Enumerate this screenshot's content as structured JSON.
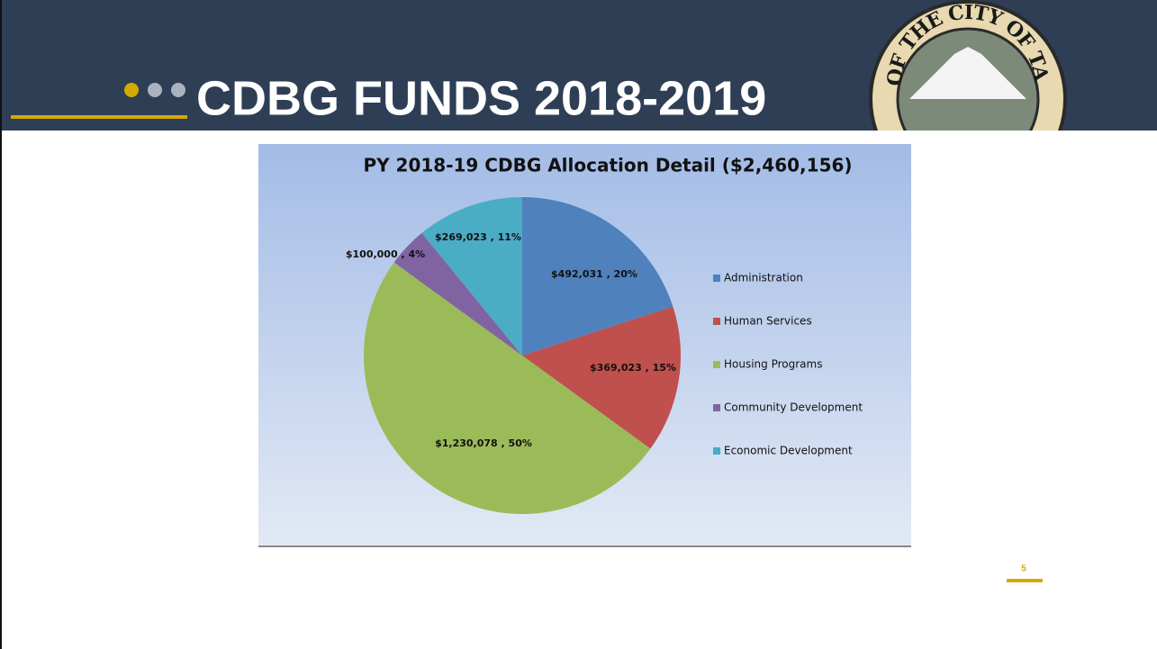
{
  "slide_title": "CDBG FUNDS 2018-2019",
  "seal_text": "SEAL OF THE CITY OF TACOMA",
  "page_number": "5",
  "chart_data": {
    "type": "pie",
    "title": "PY 2018-19 CDBG Allocation Detail ($2,460,156)",
    "categories": [
      "Administration",
      "Human Services",
      "Housing Programs",
      "Community Development",
      "Economic Development"
    ],
    "values": [
      492031,
      369023,
      1230078,
      100000,
      269023
    ],
    "value_labels": [
      "$492,031 , 20%",
      "$369,023 , 15%",
      "$1,230,078 , 50%",
      "$100,000 , 4%",
      "$269,023 , 11%"
    ],
    "colors": [
      "#4f81bd",
      "#c0504d",
      "#9bbb59",
      "#8064a2",
      "#4bacc6"
    ],
    "legend": "right"
  }
}
